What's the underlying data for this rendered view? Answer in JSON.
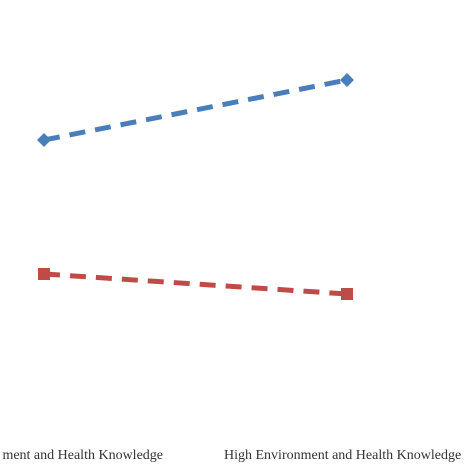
{
  "chart_data": {
    "type": "line",
    "categories": [
      "ment and Health Knowledge",
      "High Environment and Health Knowledge"
    ],
    "series": [
      {
        "name": null,
        "color": "#4a7ebb",
        "marker": "diamond",
        "values": [
          70,
          85
        ]
      },
      {
        "name": null,
        "color": "#be4b48",
        "marker": "square",
        "values": [
          36.5,
          31.5
        ]
      }
    ],
    "ylim": [
      0,
      100
    ],
    "line_style": "dashed"
  }
}
